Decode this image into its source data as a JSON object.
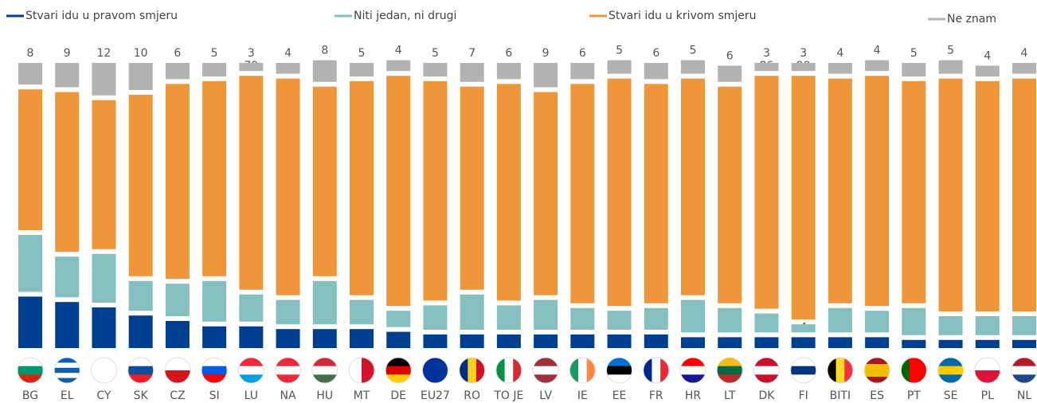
{
  "chart_data": {
    "type": "stacked_bar",
    "categories": [
      "BG",
      "EL",
      "CY",
      "SK",
      "CZ",
      "SI",
      "LU",
      "NA",
      "HU",
      "MT",
      "DE",
      "EU27",
      "RO",
      "TO JE",
      "LV",
      "IE",
      "EE",
      "FR",
      "HR",
      "LT",
      "DK",
      "FI",
      "BITI",
      "ES",
      "PT",
      "SE",
      "PL",
      "NL"
    ],
    "series": [
      {
        "name": "Stvari idu u pravom smjeru",
        "color": "#003f8f",
        "values": [
          19,
          17,
          15,
          12,
          10,
          8,
          8,
          7,
          7,
          7,
          6,
          5,
          5,
          5,
          5,
          5,
          5,
          5,
          4,
          4,
          4,
          4,
          4,
          4,
          3,
          3,
          3,
          3
        ]
      },
      {
        "name": "Niti jedan, ni drugi",
        "color": "#85bfbf",
        "values": [
          21,
          15,
          18,
          11,
          12,
          15,
          10,
          9,
          16,
          9,
          6,
          9,
          13,
          9,
          11,
          8,
          7,
          8,
          12,
          9,
          7,
          3,
          9,
          8,
          10,
          7,
          7,
          7
        ]
      },
      {
        "name": "Stvari idu u krivom smjeru",
        "color": "#f0963a",
        "values": [
          52,
          59,
          55,
          67,
          72,
          72,
          79,
          80,
          70,
          79,
          85,
          81,
          75,
          80,
          75,
          81,
          84,
          81,
          80,
          80,
          86,
          90,
          83,
          85,
          82,
          86,
          85,
          86
        ]
      },
      {
        "name": "Ne znam",
        "color": "#b3b3b3",
        "values": [
          8,
          9,
          12,
          10,
          6,
          5,
          3,
          4,
          8,
          5,
          4,
          5,
          7,
          6,
          9,
          6,
          5,
          6,
          5,
          6,
          3,
          3,
          4,
          4,
          5,
          5,
          4,
          4
        ]
      }
    ]
  }
}
